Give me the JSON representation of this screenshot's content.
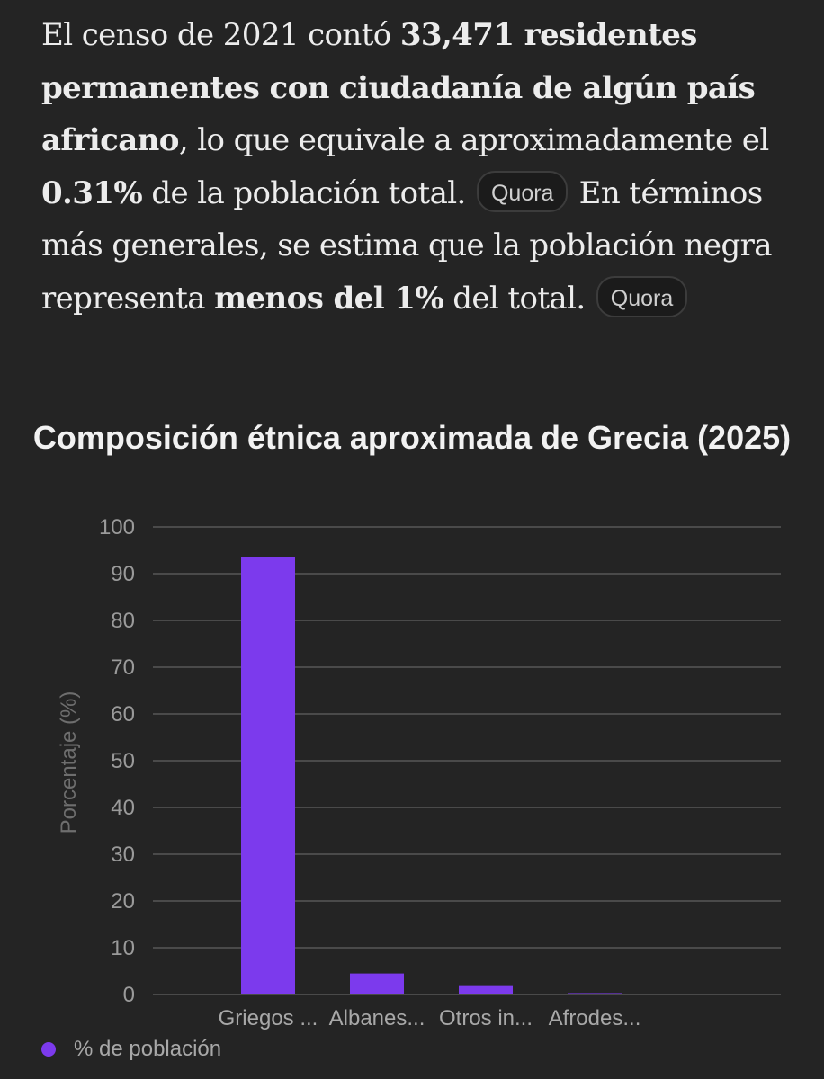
{
  "answer": {
    "p1_text1": "El censo de 2021 contó ",
    "p1_bold1": "33,471 residentes permanentes con ciudadanía de algún país africano",
    "p1_text2": ", lo que equivale a aproximadamente el ",
    "p1_bold2": "0.31%",
    "p1_text3": " de la población total. ",
    "source1": "Quora",
    "p2_text1": " En términos más generales, se estima que la población negra representa ",
    "p2_bold1": "menos del 1%",
    "p2_text2": " del total. ",
    "source2": "Quora"
  },
  "chart_data": {
    "type": "bar",
    "title": "Composición étnica aproximada de Grecia (2025)",
    "categories": [
      "Griegos ...",
      "Albanes...",
      "Otros in...",
      "Afrodes..."
    ],
    "series": [
      {
        "name": "% de población",
        "values": [
          93.5,
          4.5,
          1.8,
          0.3
        ]
      }
    ],
    "ylabel": "Porcentaje (%)",
    "xlabel": "",
    "ylim": [
      0,
      100
    ],
    "yticks": [
      0,
      10,
      20,
      30,
      40,
      50,
      60,
      70,
      80,
      90,
      100
    ],
    "grid": true,
    "legend": "bottom-left",
    "bar_color": "#7c3aed",
    "grid_color": "#4a4a4a"
  }
}
